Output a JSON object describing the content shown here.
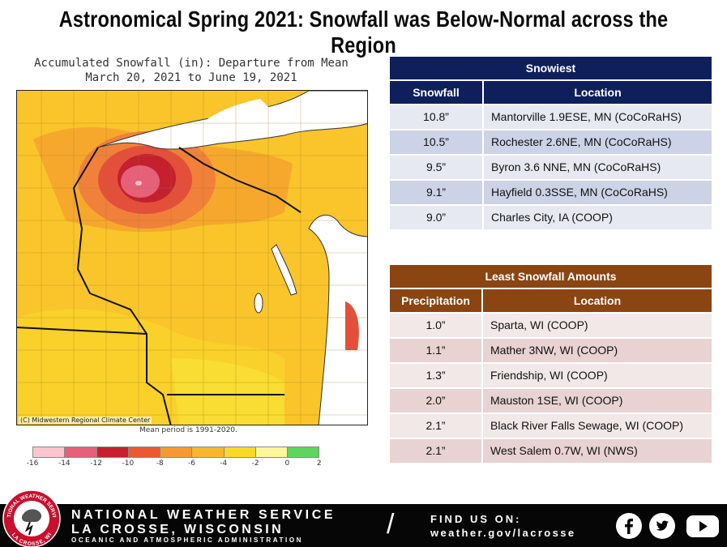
{
  "title": "Astronomical Spring 2021:  Snowfall was Below-Normal across the Region",
  "map": {
    "heading_line1": "Accumulated Snowfall (in): Departure from Mean",
    "heading_line2": "March 20, 2021 to June 19, 2021",
    "credit": "(C) Midwestern Regional Climate Center",
    "mean_period": "Mean period is 1991-2020.",
    "scale_colors": [
      "#f9c6cf",
      "#e7607a",
      "#c4202e",
      "#eb5a2e",
      "#f59a30",
      "#f7b62e",
      "#f9d926",
      "#fdf79a",
      "#5cd65c"
    ],
    "scale_ticks": [
      "-16",
      "-14",
      "-12",
      "-10",
      "-8",
      "-6",
      "-4",
      "-2",
      "0",
      "2"
    ]
  },
  "snowiest": {
    "caption": "Snowiest",
    "col1": "Snowfall",
    "col2": "Location",
    "rows": [
      {
        "value": "10.8”",
        "location": "Mantorville 1.9ESE, MN (CoCoRaHS)"
      },
      {
        "value": "10.5”",
        "location": "Rochester 2.6NE, MN (CoCoRaHS)"
      },
      {
        "value": "9.5”",
        "location": "Byron 3.6 NNE, MN (CoCoRaHS)"
      },
      {
        "value": "9.1”",
        "location": "Hayfield 0.3SSE, MN (CoCoRaHS)"
      },
      {
        "value": "9.0”",
        "location": "Charles City, IA (COOP)"
      }
    ]
  },
  "least": {
    "caption": "Least Snowfall Amounts",
    "col1": "Precipitation",
    "col2": "Location",
    "rows": [
      {
        "value": "1.0”",
        "location": "Sparta, WI (COOP)"
      },
      {
        "value": "1.1”",
        "location": "Mather 3NW, WI (COOP)"
      },
      {
        "value": "1.3”",
        "location": "Friendship, WI (COOP)"
      },
      {
        "value": "2.0”",
        "location": "Mauston 1SE, WI (COOP)"
      },
      {
        "value": "2.1”",
        "location": "Black River Falls Sewage, WI (COOP)"
      },
      {
        "value": "2.1”",
        "location": "West Salem 0.7W, WI (NWS)"
      }
    ]
  },
  "footer": {
    "logo_top_text": "NATIONAL WEATHER SERVICE",
    "logo_bottom_text": "LA CROSSE, WI",
    "line1": "NATIONAL WEATHER SERVICE",
    "line2": "LA CROSSE, WISCONSIN",
    "line3": "OCEANIC AND ATMOSPHERIC ADMINISTRATION",
    "find_us": "FIND US ON:",
    "url": "weather.gov/lacrosse",
    "social_icons": [
      "facebook-icon",
      "twitter-icon",
      "youtube-icon"
    ]
  }
}
